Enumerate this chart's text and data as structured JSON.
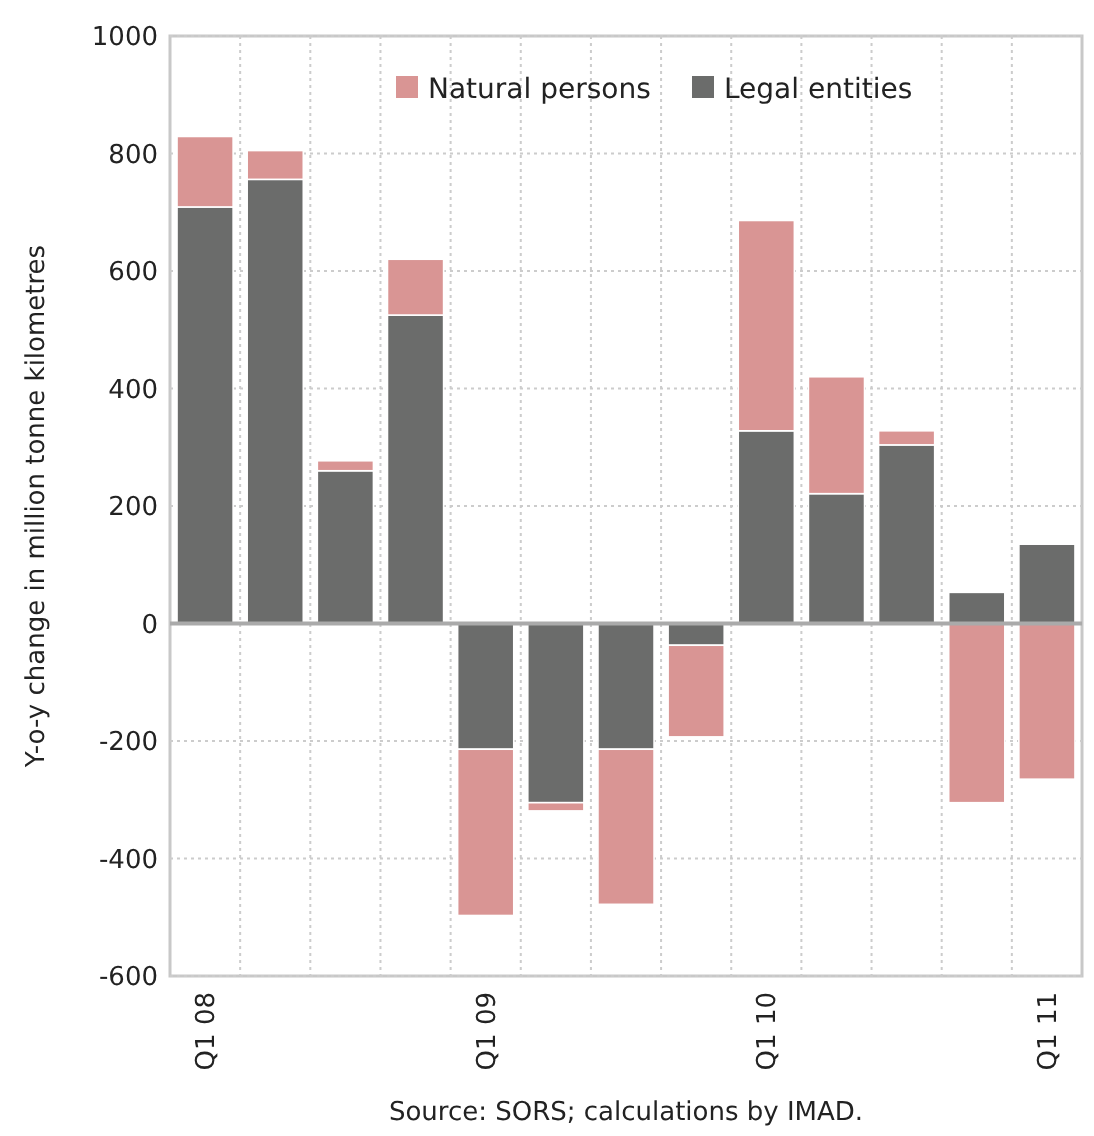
{
  "chart_data": {
    "type": "bar",
    "stacked": true,
    "categories": [
      "Q1 08",
      null,
      null,
      null,
      "Q1 09",
      null,
      null,
      null,
      "Q1 10",
      null,
      null,
      null,
      "Q1 11"
    ],
    "series": [
      {
        "name": "Legal entities",
        "color": "#6b6c6b",
        "values": [
          709,
          756,
          260,
          525,
          -214,
          -305,
          -214,
          -37,
          328,
          221,
          304,
          53,
          135
        ]
      },
      {
        "name": "Natural persons",
        "color": "#d99594",
        "values": [
          120,
          49,
          17,
          95,
          -283,
          -14,
          -264,
          -156,
          358,
          199,
          24,
          -305,
          -265
        ]
      }
    ],
    "ylabel": "Y-o-y change in million tonne kilometres",
    "ylim": [
      -600,
      1000
    ],
    "yticks": [
      -600,
      -400,
      -200,
      0,
      200,
      400,
      600,
      800,
      1000
    ],
    "grid": true,
    "legend": "top right",
    "annotations": [
      "Source: SORS; calculations by IMAD."
    ]
  }
}
